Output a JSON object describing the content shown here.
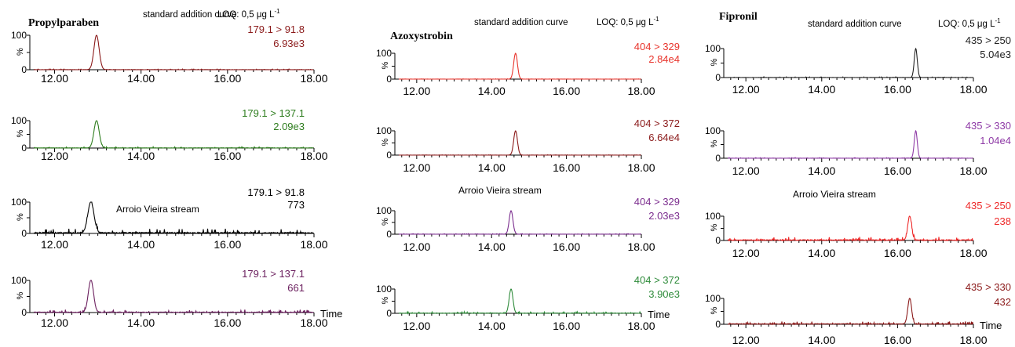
{
  "chart_data": [
    {
      "type": "line",
      "compound": "Propylparaben",
      "title": "standard addition curve",
      "loq": "LOQ: 0,5 μg L",
      "loq_exp": "-1",
      "xlim": [
        11.5,
        18.0
      ],
      "ylim": [
        0,
        100
      ],
      "xticks": [
        "12.00",
        "14.00",
        "16.00",
        "18.00"
      ],
      "time_label": "Time",
      "panels": [
        {
          "transition": "179.1 > 91.8",
          "intensity": "6.93e3",
          "color": "#8b1a1a",
          "peak_rt": 12.97,
          "peak_width": 0.06,
          "peak_height": 100,
          "noise": 1,
          "note": ""
        },
        {
          "transition": "179.1 > 137.1",
          "intensity": "2.09e3",
          "color": "#2e7d1e",
          "peak_rt": 12.97,
          "peak_width": 0.06,
          "peak_height": 100,
          "noise": 2,
          "note": ""
        },
        {
          "transition": "179.1 > 91.8",
          "intensity": "773",
          "color": "#000000",
          "peak_rt": 12.84,
          "peak_width": 0.07,
          "peak_height": 100,
          "noise": 7,
          "note": "Arroio Vieira stream"
        },
        {
          "transition": "179.1 > 137.1",
          "intensity": "661",
          "color": "#6b1f5e",
          "peak_rt": 12.84,
          "peak_width": 0.06,
          "peak_height": 100,
          "noise": 4,
          "note": ""
        }
      ]
    },
    {
      "type": "line",
      "compound": "Azoxystrobin",
      "title": "standard addition curve",
      "loq": "LOQ: 0,5 μg L",
      "loq_exp": "-1",
      "xlim": [
        11.5,
        18.0
      ],
      "ylim": [
        0,
        100
      ],
      "xticks": [
        "12.00",
        "14.00",
        "16.00",
        "18.00"
      ],
      "time_label": "Time",
      "panels": [
        {
          "transition": "404 > 329",
          "intensity": "2.84e4",
          "color": "#e8342c",
          "peak_rt": 14.64,
          "peak_width": 0.05,
          "peak_height": 100,
          "noise": 0.5,
          "note": ""
        },
        {
          "transition": "404 > 372",
          "intensity": "6.64e4",
          "color": "#8b1a1a",
          "peak_rt": 14.64,
          "peak_width": 0.05,
          "peak_height": 100,
          "noise": 0.5,
          "note": ""
        },
        {
          "transition": "404 > 329",
          "intensity": "2.03e3",
          "color": "#7b2d8e",
          "peak_rt": 14.52,
          "peak_width": 0.05,
          "peak_height": 100,
          "noise": 1,
          "note": "Arroio Vieira stream"
        },
        {
          "transition": "404 > 372",
          "intensity": "3.90e3",
          "color": "#2e8b3a",
          "peak_rt": 14.52,
          "peak_width": 0.05,
          "peak_height": 100,
          "noise": 3,
          "note": ""
        }
      ]
    },
    {
      "type": "line",
      "compound": "Fipronil",
      "title": "standard addition curve",
      "loq": "LOQ: 0,5 μg L",
      "loq_exp": "-1",
      "xlim": [
        11.5,
        18.0
      ],
      "ylim": [
        0,
        100
      ],
      "xticks": [
        "12.00",
        "14.00",
        "16.00",
        "18.00"
      ],
      "time_label": "Time",
      "panels": [
        {
          "transition": "435 > 250",
          "intensity": "5.04e3",
          "color": "#222222",
          "peak_rt": 16.48,
          "peak_width": 0.04,
          "peak_height": 100,
          "noise": 1,
          "note": ""
        },
        {
          "transition": "435 > 330",
          "intensity": "1.04e4",
          "color": "#8e3aa6",
          "peak_rt": 16.48,
          "peak_width": 0.04,
          "peak_height": 100,
          "noise": 1,
          "note": ""
        },
        {
          "transition": "435 > 250",
          "intensity": "238",
          "color": "#ee2a2a",
          "peak_rt": 16.32,
          "peak_width": 0.05,
          "peak_height": 100,
          "noise": 7,
          "note": "Arroio Vieira stream"
        },
        {
          "transition": "435 > 330",
          "intensity": "432",
          "color": "#8b1a1a",
          "peak_rt": 16.32,
          "peak_width": 0.05,
          "peak_height": 100,
          "noise": 5,
          "note": ""
        }
      ]
    }
  ]
}
